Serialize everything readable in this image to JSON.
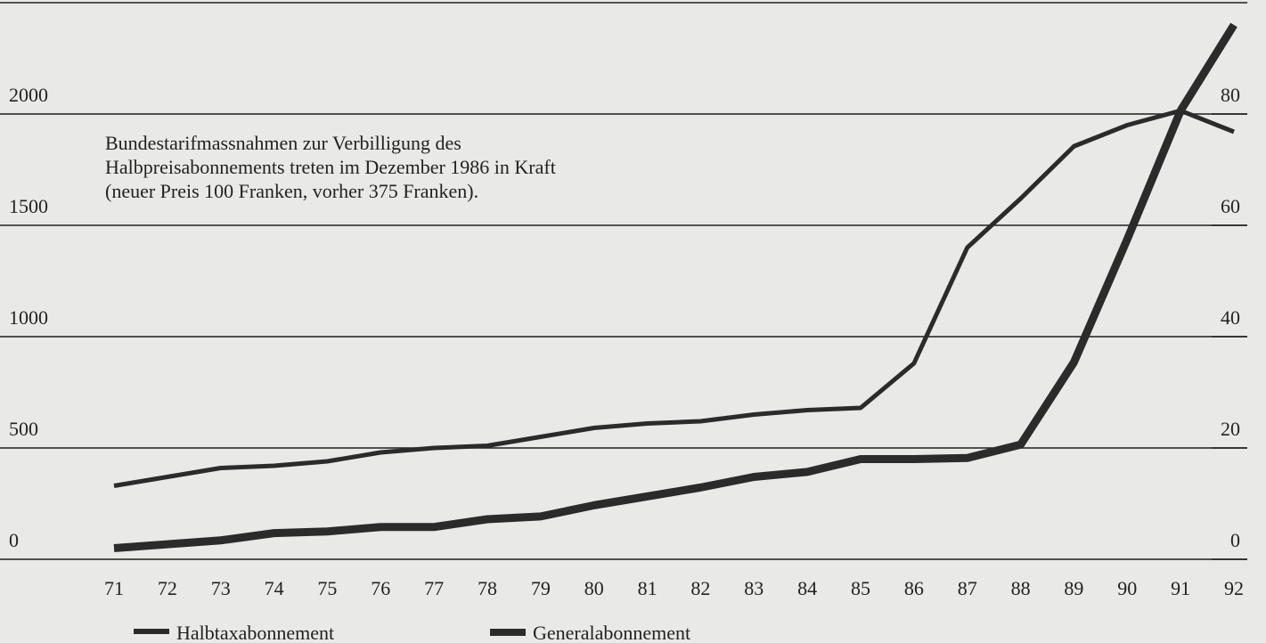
{
  "chart_data": {
    "type": "line",
    "annotation": [
      "Bundestarifmassnahmen zur Verbilligung des",
      "Halbpreisabonnements treten im Dezember 1986 in Kraft",
      "(neuer Preis 100 Franken, vorher 375 Franken)."
    ],
    "categories": [
      "71",
      "72",
      "73",
      "74",
      "75",
      "76",
      "77",
      "78",
      "79",
      "80",
      "81",
      "82",
      "83",
      "84",
      "85",
      "86",
      "87",
      "88",
      "89",
      "90",
      "91",
      "92"
    ],
    "series": [
      {
        "name": "Halbtaxabonnement",
        "color": "#2b2b2b",
        "values": [
          330,
          370,
          410,
          420,
          440,
          480,
          500,
          510,
          550,
          590,
          610,
          620,
          650,
          670,
          680,
          880,
          1400,
          1620,
          1855,
          1950,
          2015,
          1920
        ]
      },
      {
        "name": "Generalabonnement",
        "color": "#2b2b2b",
        "axis": "y2",
        "values": [
          2,
          2.7,
          3.4,
          4.7,
          5,
          5.8,
          5.8,
          7.2,
          7.7,
          9.7,
          11.3,
          12.9,
          14.8,
          15.7,
          18,
          18,
          18.2,
          20.6,
          35.4,
          57.5,
          80.6,
          96
        ]
      }
    ],
    "ylim": [
      0,
      2500
    ],
    "yticks": [
      0,
      500,
      1000,
      1500,
      2000
    ],
    "y2lim": [
      0,
      100
    ],
    "y2ticks": [
      0,
      20,
      40,
      60,
      80
    ],
    "grid": true
  }
}
